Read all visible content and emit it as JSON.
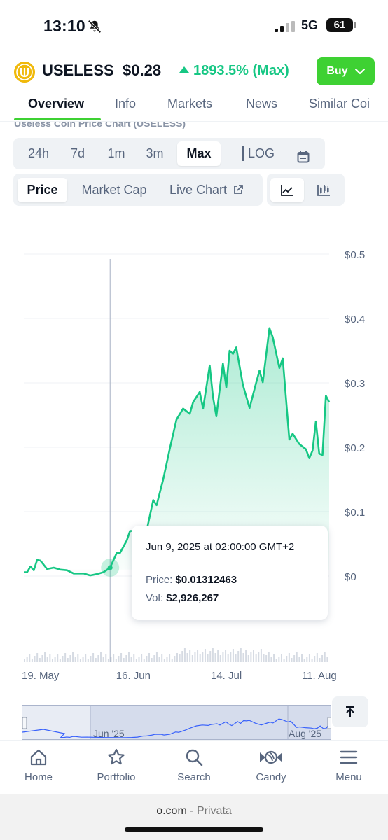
{
  "status_bar": {
    "time": "13:10",
    "network": "5G",
    "battery": "61"
  },
  "coin": {
    "symbol": "USELESS",
    "price": "$0.28",
    "change": "1893.5% (Max)",
    "buy_label": "Buy",
    "accent_color": "#16c784",
    "buy_color": "#3ed133"
  },
  "tabs": [
    "Overview",
    "Info",
    "Markets",
    "News",
    "Similar Coi"
  ],
  "chart_subtitle": "Useless Coin Price Chart (USELESS)",
  "ranges": [
    "24h",
    "7d",
    "1m",
    "3m",
    "Max",
    "LOG"
  ],
  "chart_types": [
    "Price",
    "Market Cap",
    "Live Chart"
  ],
  "tooltip": {
    "date": "Jun 9, 2025 at 02:00:00 GMT+2",
    "price_label": "Price:",
    "price_value": "$0.01312463",
    "vol_label": "Vol:",
    "vol_value": "$2,926,267"
  },
  "chart_data": {
    "type": "area",
    "title": "Useless Coin Price Chart (USELESS)",
    "x_ticks": [
      "19. May",
      "16. Jun",
      "14. Jul",
      "11. Aug"
    ],
    "y_ticks": [
      "$0.5",
      "$0.4",
      "$0.3",
      "$0.2",
      "$0.1",
      "$0"
    ],
    "ylim": [
      0,
      0.5
    ],
    "line_color": "#16c784",
    "series": [
      {
        "x": [
          "2025-05-14",
          "2025-05-15",
          "2025-05-16",
          "2025-05-17",
          "2025-05-18",
          "2025-05-19",
          "2025-05-21",
          "2025-05-23",
          "2025-05-25",
          "2025-05-27",
          "2025-05-29",
          "2025-06-01",
          "2025-06-03",
          "2025-06-05",
          "2025-06-07",
          "2025-06-09",
          "2025-06-11",
          "2025-06-12",
          "2025-06-14",
          "2025-06-15",
          "2025-06-17",
          "2025-06-18",
          "2025-06-20",
          "2025-06-22",
          "2025-06-23",
          "2025-06-25",
          "2025-06-27",
          "2025-06-29",
          "2025-07-01",
          "2025-07-03",
          "2025-07-04",
          "2025-07-06",
          "2025-07-07",
          "2025-07-09",
          "2025-07-10",
          "2025-07-11",
          "2025-07-13",
          "2025-07-14",
          "2025-07-15",
          "2025-07-16",
          "2025-07-17",
          "2025-07-19",
          "2025-07-21",
          "2025-07-23",
          "2025-07-24",
          "2025-07-25",
          "2025-07-27",
          "2025-07-28",
          "2025-07-30",
          "2025-07-31",
          "2025-08-02",
          "2025-08-03",
          "2025-08-05",
          "2025-08-07",
          "2025-08-08",
          "2025-08-09",
          "2025-08-10",
          "2025-08-11",
          "2025-08-12",
          "2025-08-13",
          "2025-08-14"
        ],
        "values": [
          0.006,
          0.006,
          0.015,
          0.009,
          0.025,
          0.024,
          0.011,
          0.013,
          0.01,
          0.009,
          0.004,
          0.004,
          0.001,
          0.003,
          0.006,
          0.013,
          0.036,
          0.036,
          0.055,
          0.07,
          0.07,
          0.055,
          0.07,
          0.118,
          0.11,
          0.15,
          0.198,
          0.243,
          0.26,
          0.252,
          0.27,
          0.286,
          0.26,
          0.327,
          0.278,
          0.248,
          0.33,
          0.293,
          0.35,
          0.345,
          0.355,
          0.297,
          0.261,
          0.3,
          0.319,
          0.301,
          0.385,
          0.371,
          0.323,
          0.338,
          0.212,
          0.221,
          0.205,
          0.197,
          0.183,
          0.195,
          0.24,
          0.19,
          0.188,
          0.28,
          0.27
        ]
      }
    ]
  },
  "navigator": {
    "labels": [
      "Jun '25",
      "Aug '25"
    ]
  },
  "bottom_nav": [
    "Home",
    "Portfolio",
    "Search",
    "Candy",
    "Menu"
  ],
  "browser": {
    "url": "o.com",
    "sep": " - ",
    "mode": "Privata"
  }
}
